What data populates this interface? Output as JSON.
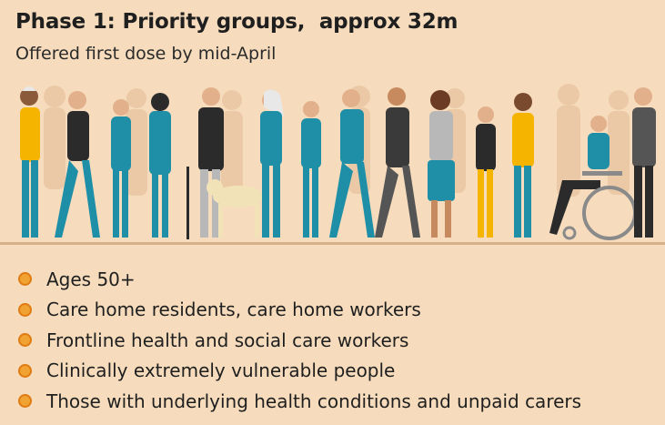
{
  "header": {
    "title": "Phase 1: Priority groups,  approx 32m",
    "subtitle": "Offered first dose by mid-April"
  },
  "illustration": {
    "description_icon": "queue-of-people-illustration",
    "colors": {
      "background": "#f6dcbc",
      "silhouette": "#e8c39d",
      "teal": "#1f8fa8",
      "dark": "#2b2b2b",
      "yellow": "#f4b400",
      "grey": "#b8b8b8",
      "floor": "#c9a27e"
    }
  },
  "groups": [
    {
      "label": "Ages 50+"
    },
    {
      "label": "Care home residents, care home workers"
    },
    {
      "label": "Frontline health and social care workers"
    },
    {
      "label": "Clinically extremely vulnerable people"
    },
    {
      "label": "Those with underlying health conditions and unpaid carers"
    }
  ],
  "bullet_color": "#f0a232"
}
